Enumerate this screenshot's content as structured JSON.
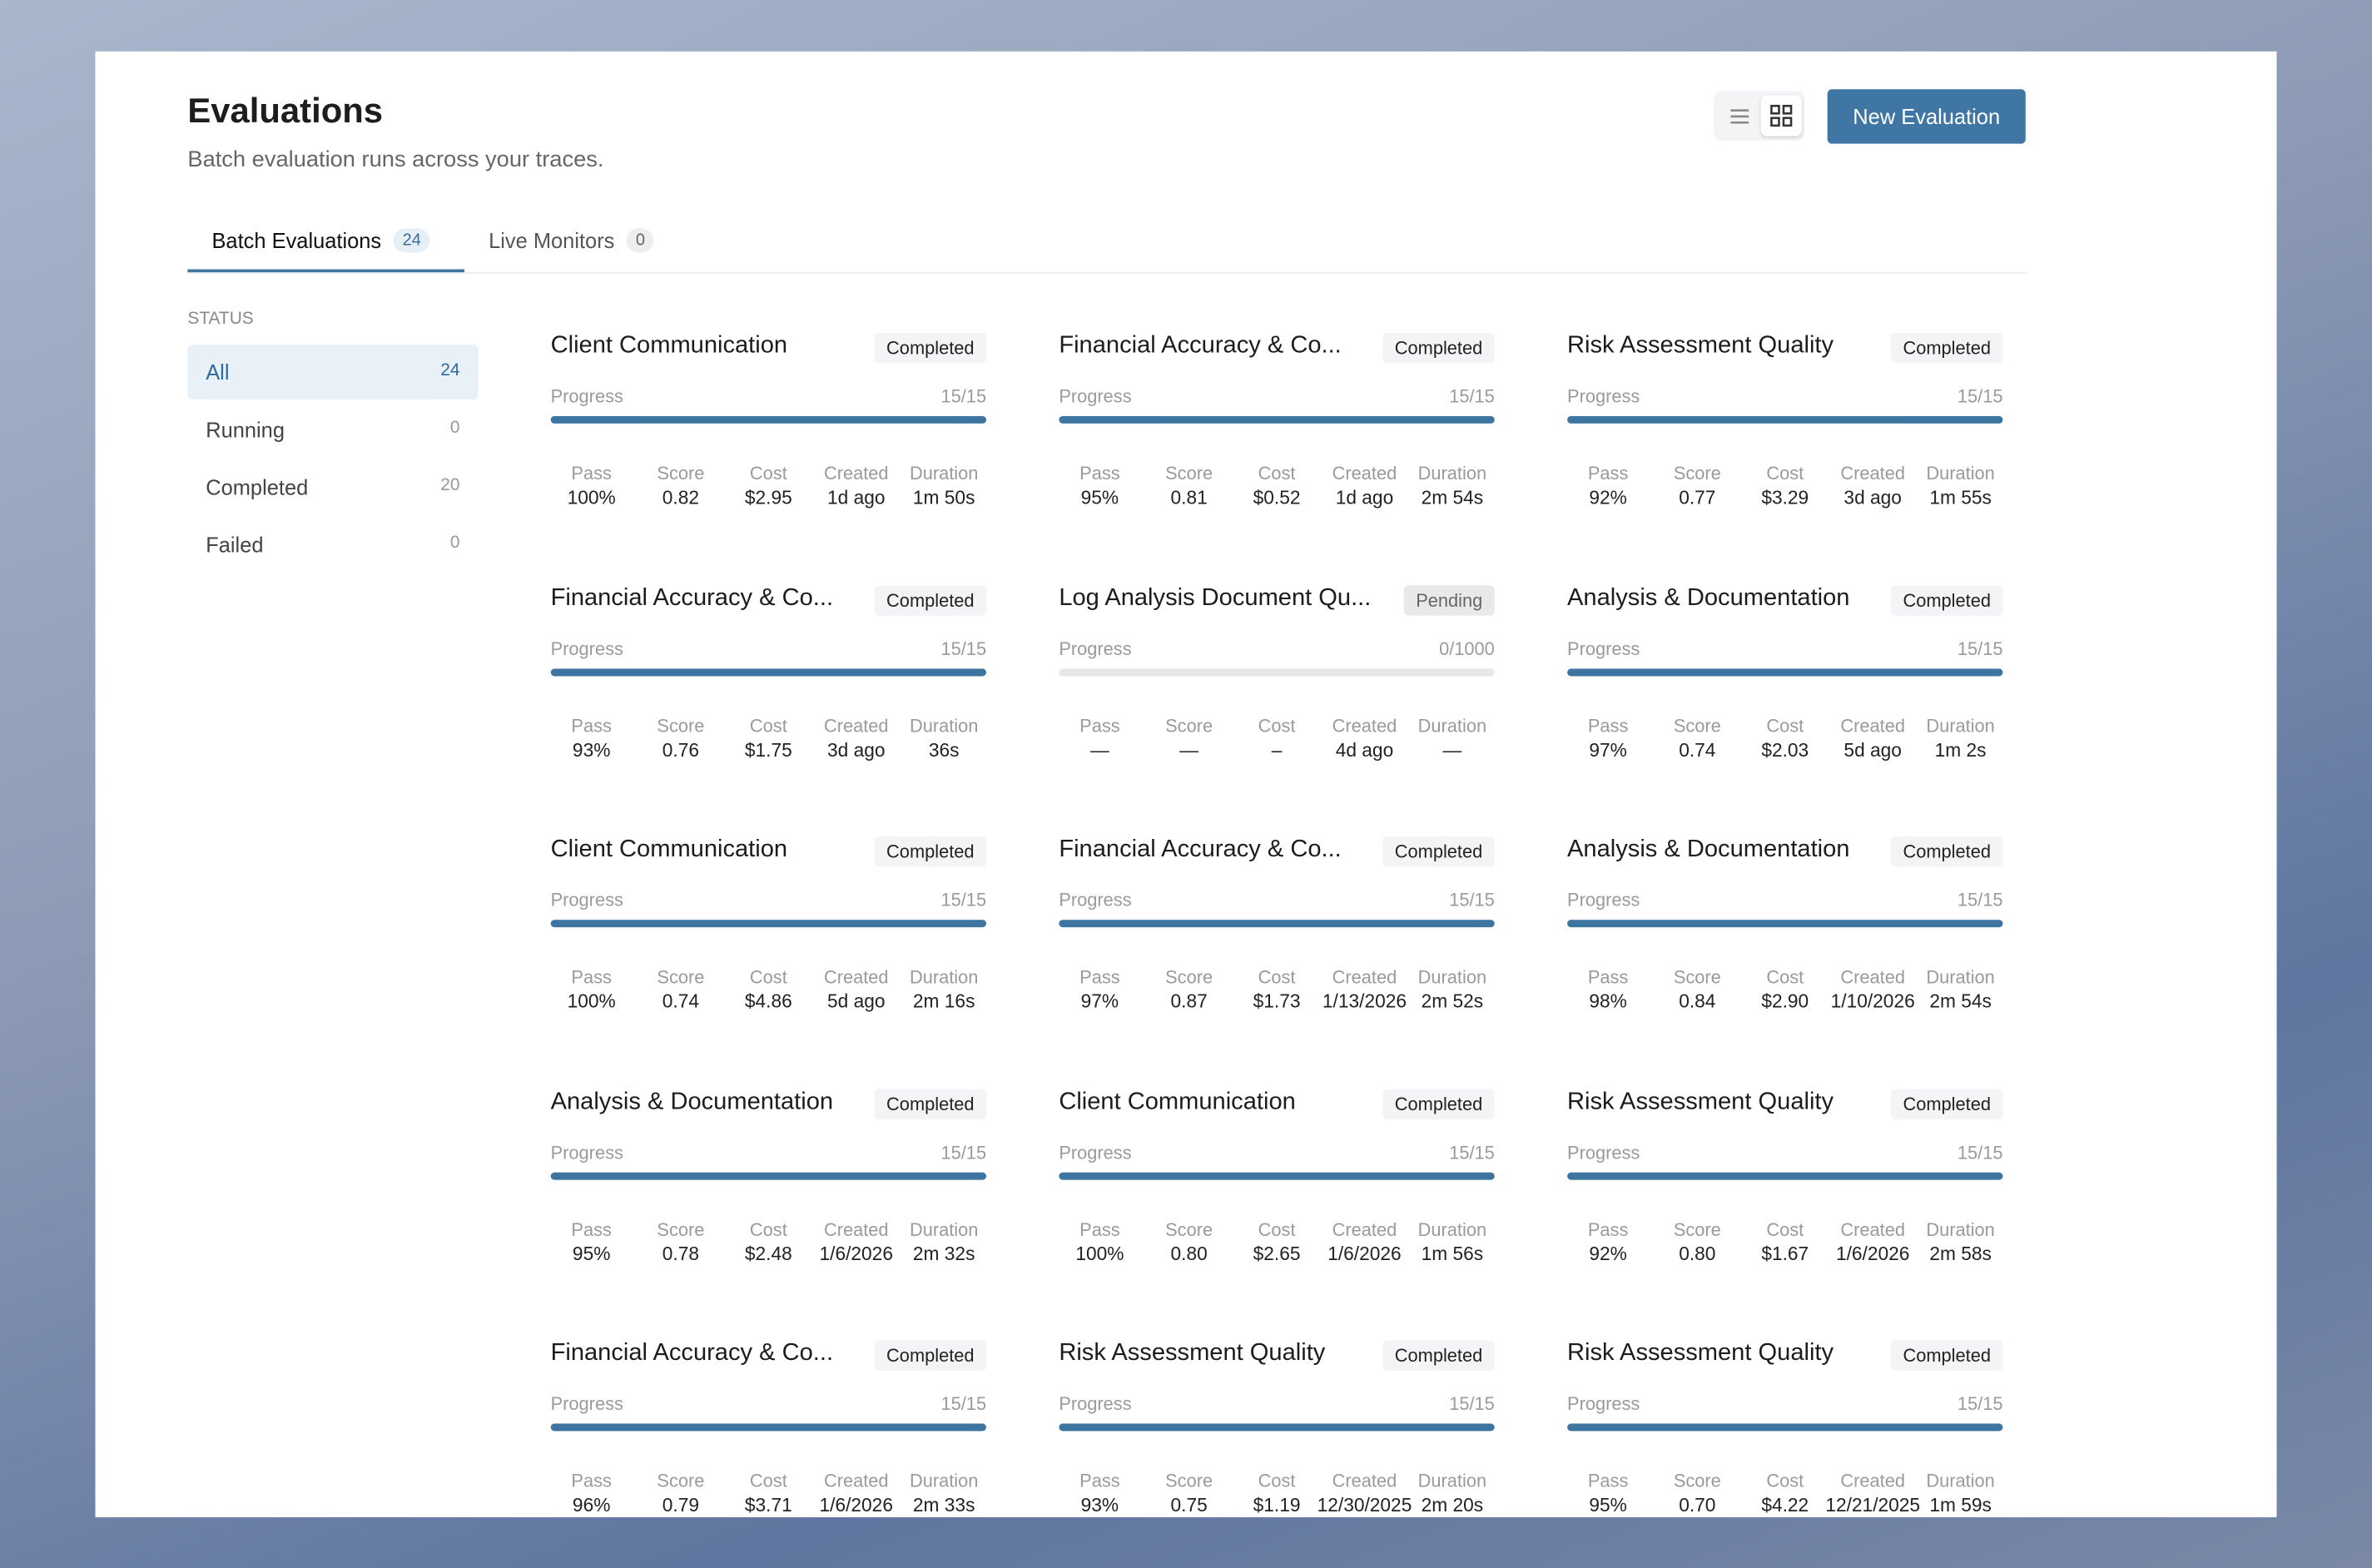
{
  "header": {
    "title": "Evaluations",
    "subtitle": "Batch evaluation runs across your traces.",
    "button": "New Evaluation"
  },
  "tabs": [
    {
      "label": "Batch Evaluations",
      "count": "24"
    },
    {
      "label": "Live Monitors",
      "count": "0"
    }
  ],
  "sidebar": {
    "heading": "STATUS",
    "filters": [
      {
        "label": "All",
        "count": "24"
      },
      {
        "label": "Running",
        "count": "0"
      },
      {
        "label": "Completed",
        "count": "20"
      },
      {
        "label": "Failed",
        "count": "0"
      }
    ]
  },
  "progress_label": "Progress",
  "metric_labels": [
    "Pass",
    "Score",
    "Cost",
    "Created",
    "Duration"
  ],
  "cards": [
    {
      "name": "Client Communication",
      "status": "Completed",
      "progress": {
        "label": "15/15",
        "done": 15,
        "total": 15
      },
      "metrics": [
        "100%",
        "0.82",
        "$2.95",
        "1d ago",
        "1m 50s"
      ]
    },
    {
      "name": "Financial Accuracy & Co...",
      "status": "Completed",
      "progress": {
        "label": "15/15",
        "done": 15,
        "total": 15
      },
      "metrics": [
        "95%",
        "0.81",
        "$0.52",
        "1d ago",
        "2m 54s"
      ]
    },
    {
      "name": "Risk Assessment Quality",
      "status": "Completed",
      "progress": {
        "label": "15/15",
        "done": 15,
        "total": 15
      },
      "metrics": [
        "92%",
        "0.77",
        "$3.29",
        "3d ago",
        "1m 55s"
      ]
    },
    {
      "name": "Financial Accuracy & Co...",
      "status": "Completed",
      "progress": {
        "label": "15/15",
        "done": 15,
        "total": 15
      },
      "metrics": [
        "93%",
        "0.76",
        "$1.75",
        "3d ago",
        "36s"
      ]
    },
    {
      "name": "Log Analysis Document Qu...",
      "status": "Pending",
      "progress": {
        "label": "0/1000",
        "done": 0,
        "total": 1000
      },
      "metrics": [
        "—",
        "—",
        "–",
        "4d ago",
        "—"
      ]
    },
    {
      "name": "Analysis & Documentation",
      "status": "Completed",
      "progress": {
        "label": "15/15",
        "done": 15,
        "total": 15
      },
      "metrics": [
        "97%",
        "0.74",
        "$2.03",
        "5d ago",
        "1m 2s"
      ]
    },
    {
      "name": "Client Communication",
      "status": "Completed",
      "progress": {
        "label": "15/15",
        "done": 15,
        "total": 15
      },
      "metrics": [
        "100%",
        "0.74",
        "$4.86",
        "5d ago",
        "2m 16s"
      ]
    },
    {
      "name": "Financial Accuracy & Co...",
      "status": "Completed",
      "progress": {
        "label": "15/15",
        "done": 15,
        "total": 15
      },
      "metrics": [
        "97%",
        "0.87",
        "$1.73",
        "1/13/2026",
        "2m 52s"
      ]
    },
    {
      "name": "Analysis & Documentation",
      "status": "Completed",
      "progress": {
        "label": "15/15",
        "done": 15,
        "total": 15
      },
      "metrics": [
        "98%",
        "0.84",
        "$2.90",
        "1/10/2026",
        "2m 54s"
      ]
    },
    {
      "name": "Analysis & Documentation",
      "status": "Completed",
      "progress": {
        "label": "15/15",
        "done": 15,
        "total": 15
      },
      "metrics": [
        "95%",
        "0.78",
        "$2.48",
        "1/6/2026",
        "2m 32s"
      ]
    },
    {
      "name": "Client Communication",
      "status": "Completed",
      "progress": {
        "label": "15/15",
        "done": 15,
        "total": 15
      },
      "metrics": [
        "100%",
        "0.80",
        "$2.65",
        "1/6/2026",
        "1m 56s"
      ]
    },
    {
      "name": "Risk Assessment Quality",
      "status": "Completed",
      "progress": {
        "label": "15/15",
        "done": 15,
        "total": 15
      },
      "metrics": [
        "92%",
        "0.80",
        "$1.67",
        "1/6/2026",
        "2m 58s"
      ]
    },
    {
      "name": "Financial Accuracy & Co...",
      "status": "Completed",
      "progress": {
        "label": "15/15",
        "done": 15,
        "total": 15
      },
      "metrics": [
        "96%",
        "0.79",
        "$3.71",
        "1/6/2026",
        "2m 33s"
      ]
    },
    {
      "name": "Risk Assessment Quality",
      "status": "Completed",
      "progress": {
        "label": "15/15",
        "done": 15,
        "total": 15
      },
      "metrics": [
        "93%",
        "0.75",
        "$1.19",
        "12/30/2025",
        "2m 20s"
      ]
    },
    {
      "name": "Risk Assessment Quality",
      "status": "Completed",
      "progress": {
        "label": "15/15",
        "done": 15,
        "total": 15
      },
      "metrics": [
        "95%",
        "0.70",
        "$4.22",
        "12/21/2025",
        "1m 59s"
      ]
    }
  ]
}
